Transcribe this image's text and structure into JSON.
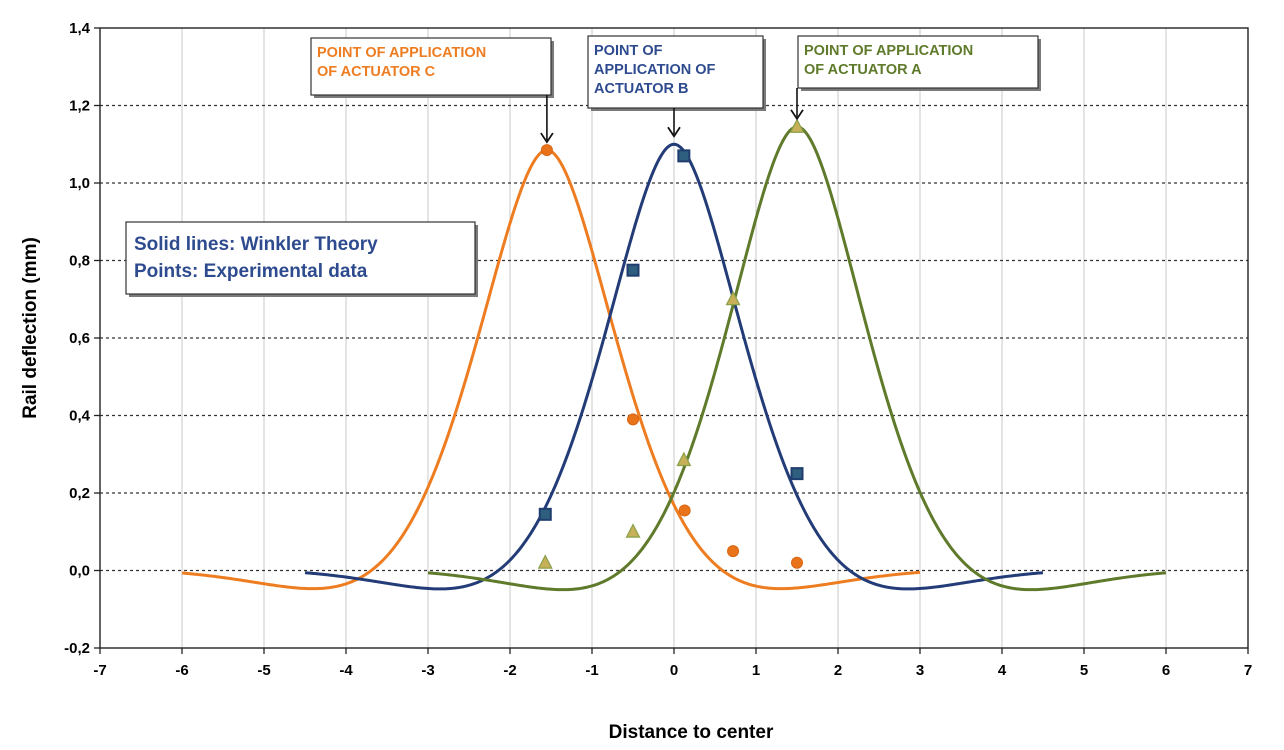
{
  "chart_data": {
    "type": "line",
    "title": "",
    "xlabel": "Distance to center",
    "ylabel": "Rail deflection (mm)",
    "xlim": [
      -7,
      7
    ],
    "ylim": [
      -0.2,
      1.4
    ],
    "xticks": [
      -7,
      -6,
      -5,
      -4,
      -3,
      -2,
      -1,
      0,
      1,
      2,
      3,
      4,
      5,
      6,
      7
    ],
    "yticks": [
      -0.2,
      0.0,
      0.2,
      0.4,
      0.6,
      0.8,
      1.0,
      1.2,
      1.4
    ],
    "xtick_labels": [
      "-7",
      "-6",
      "-5",
      "-4",
      "-3",
      "-2",
      "-1",
      "0",
      "1",
      "2",
      "3",
      "4",
      "5",
      "6",
      "7"
    ],
    "ytick_labels": [
      "-0,2",
      "0,0",
      "0,2",
      "0,4",
      "0,6",
      "0,8",
      "1,0",
      "1,2",
      "1,4"
    ],
    "grid": {
      "vertical": "solid",
      "horizontal": "dashed"
    },
    "legend_box": {
      "lines": [
        "Solid lines: Winkler Theory",
        "Points: Experimental data"
      ],
      "placement": "middle-left",
      "color": "#2e4b8f"
    },
    "annotations": [
      {
        "lines": [
          "POINT OF APPLICATION",
          "OF ACTUATOR C"
        ],
        "color": "#ee7d22",
        "arrow_x": -1.55,
        "arrow_y": 1.085
      },
      {
        "lines": [
          "POINT OF",
          "APPLICATION OF",
          "ACTUATOR B"
        ],
        "color": "#2e4b8f",
        "arrow_x": 0.0,
        "arrow_y": 1.1
      },
      {
        "lines": [
          "POINT OF APPLICATION",
          "OF ACTUATOR A"
        ],
        "color": "#5f7a2a",
        "arrow_x": 1.5,
        "arrow_y": 1.145
      }
    ],
    "series": [
      {
        "curve_color": "#ee7d22",
        "x_range": [
          -6,
          3
        ],
        "center": -1.55,
        "peak": 1.085,
        "marker": "circle",
        "marker_fill": "#e8731a",
        "points": [
          [
            -1.55,
            1.085
          ],
          [
            -0.5,
            0.39
          ],
          [
            0.13,
            0.155
          ],
          [
            0.72,
            0.05
          ],
          [
            1.5,
            0.02
          ]
        ]
      },
      {
        "curve_color": "#233c78",
        "x_range": [
          -4.5,
          4.5
        ],
        "center": 0.0,
        "peak": 1.1,
        "marker": "square",
        "marker_fill": "#2f5f7f",
        "marker_stroke": "#1f3d6e",
        "points": [
          [
            -1.57,
            0.145
          ],
          [
            -0.5,
            0.775
          ],
          [
            0.12,
            1.07
          ],
          [
            1.5,
            0.25
          ]
        ]
      },
      {
        "curve_color": "#5f7a2a",
        "x_range": [
          -3,
          6
        ],
        "center": 1.5,
        "peak": 1.145,
        "marker": "triangle",
        "marker_fill": "#c7b058",
        "marker_stroke": "#8aa04a",
        "points": [
          [
            -1.57,
            0.02
          ],
          [
            -0.5,
            0.1
          ],
          [
            0.12,
            0.285
          ],
          [
            0.72,
            0.7
          ],
          [
            1.5,
            1.145
          ]
        ]
      }
    ]
  }
}
